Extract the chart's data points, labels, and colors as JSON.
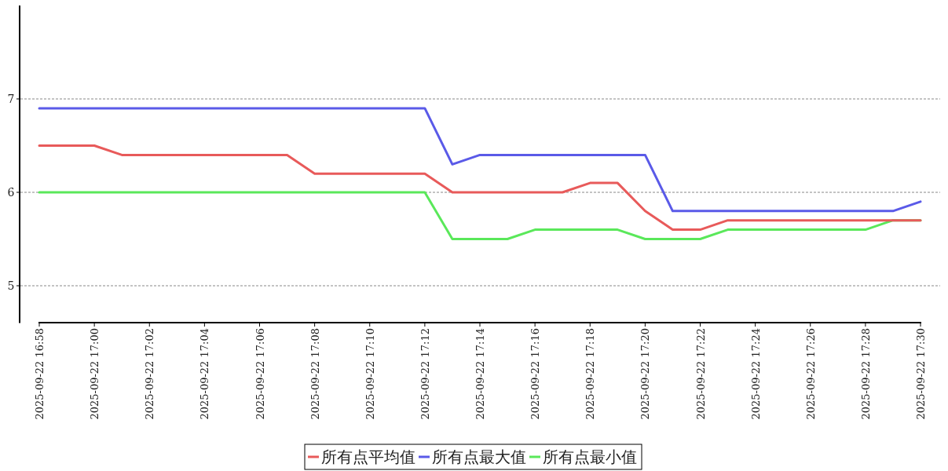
{
  "chart_data": {
    "type": "line",
    "x": [
      "2025-09-22T16:58",
      "2025-09-22T16:59",
      "2025-09-22T17:00",
      "2025-09-22T17:01",
      "2025-09-22T17:02",
      "2025-09-22T17:03",
      "2025-09-22T17:04",
      "2025-09-22T17:05",
      "2025-09-22T17:06",
      "2025-09-22T17:07",
      "2025-09-22T17:08",
      "2025-09-22T17:09",
      "2025-09-22T17:10",
      "2025-09-22T17:11",
      "2025-09-22T17:12",
      "2025-09-22T17:13",
      "2025-09-22T17:14",
      "2025-09-22T17:15",
      "2025-09-22T17:16",
      "2025-09-22T17:17",
      "2025-09-22T17:18",
      "2025-09-22T17:19",
      "2025-09-22T17:20",
      "2025-09-22T17:21",
      "2025-09-22T17:22",
      "2025-09-22T17:23",
      "2025-09-22T17:24",
      "2025-09-22T17:25",
      "2025-09-22T17:26",
      "2025-09-22T17:27",
      "2025-09-22T17:28",
      "2025-09-22T17:29",
      "2025-09-22T17:30"
    ],
    "series": [
      {
        "name": "所有点平均值",
        "color": "#e85a5a",
        "values": [
          6.5,
          6.5,
          6.5,
          6.4,
          6.4,
          6.4,
          6.4,
          6.4,
          6.4,
          6.4,
          6.2,
          6.2,
          6.2,
          6.2,
          6.2,
          6.0,
          6.0,
          6.0,
          6.0,
          6.0,
          6.1,
          6.1,
          5.8,
          5.6,
          5.6,
          5.7,
          5.7,
          5.7,
          5.7,
          5.7,
          5.7,
          5.7,
          5.7
        ]
      },
      {
        "name": "所有点最大值",
        "color": "#5a5ae8",
        "values": [
          6.9,
          6.9,
          6.9,
          6.9,
          6.9,
          6.9,
          6.9,
          6.9,
          6.9,
          6.9,
          6.9,
          6.9,
          6.9,
          6.9,
          6.9,
          6.3,
          6.4,
          6.4,
          6.4,
          6.4,
          6.4,
          6.4,
          6.4,
          5.8,
          5.8,
          5.8,
          5.8,
          5.8,
          5.8,
          5.8,
          5.8,
          5.8,
          5.9
        ]
      },
      {
        "name": "所有点最小值",
        "color": "#5ae85a",
        "values": [
          6.0,
          6.0,
          6.0,
          6.0,
          6.0,
          6.0,
          6.0,
          6.0,
          6.0,
          6.0,
          6.0,
          6.0,
          6.0,
          6.0,
          6.0,
          5.5,
          5.5,
          5.5,
          5.6,
          5.6,
          5.6,
          5.6,
          5.5,
          5.5,
          5.5,
          5.6,
          5.6,
          5.6,
          5.6,
          5.6,
          5.6,
          5.7,
          5.7
        ]
      }
    ],
    "xlim": [
      "2025-09-22T16:58",
      "2025-09-22T17:30"
    ],
    "ylim": [
      4.6,
      8
    ],
    "yticks": [
      5,
      6,
      7
    ],
    "xticks": [
      {
        "value": "2025-09-22T16:58",
        "label": "2025-09-22 16:58"
      },
      {
        "value": "2025-09-22T17:00",
        "label": "2025-09-22 17:00"
      },
      {
        "value": "2025-09-22T17:02",
        "label": "2025-09-22 17:02"
      },
      {
        "value": "2025-09-22T17:04",
        "label": "2025-09-22 17:04"
      },
      {
        "value": "2025-09-22T17:06",
        "label": "2025-09-22 17:06"
      },
      {
        "value": "2025-09-22T17:08",
        "label": "2025-09-22 17:08"
      },
      {
        "value": "2025-09-22T17:10",
        "label": "2025-09-22 17:10"
      },
      {
        "value": "2025-09-22T17:12",
        "label": "2025-09-22 17:12"
      },
      {
        "value": "2025-09-22T17:14",
        "label": "2025-09-22 17:14"
      },
      {
        "value": "2025-09-22T17:16",
        "label": "2025-09-22 17:16"
      },
      {
        "value": "2025-09-22T17:18",
        "label": "2025-09-22 17:18"
      },
      {
        "value": "2025-09-22T17:20",
        "label": "2025-09-22 17:20"
      },
      {
        "value": "2025-09-22T17:22",
        "label": "2025-09-22 17:22"
      },
      {
        "value": "2025-09-22T17:24",
        "label": "2025-09-22 17:24"
      },
      {
        "value": "2025-09-22T17:26",
        "label": "2025-09-22 17:26"
      },
      {
        "value": "2025-09-22T17:28",
        "label": "2025-09-22 17:28"
      },
      {
        "value": "2025-09-22T17:30",
        "label": "2025-09-22 17:30"
      }
    ],
    "grid": "y",
    "legend": "bottom",
    "marker": "none",
    "line_style": "solid"
  }
}
